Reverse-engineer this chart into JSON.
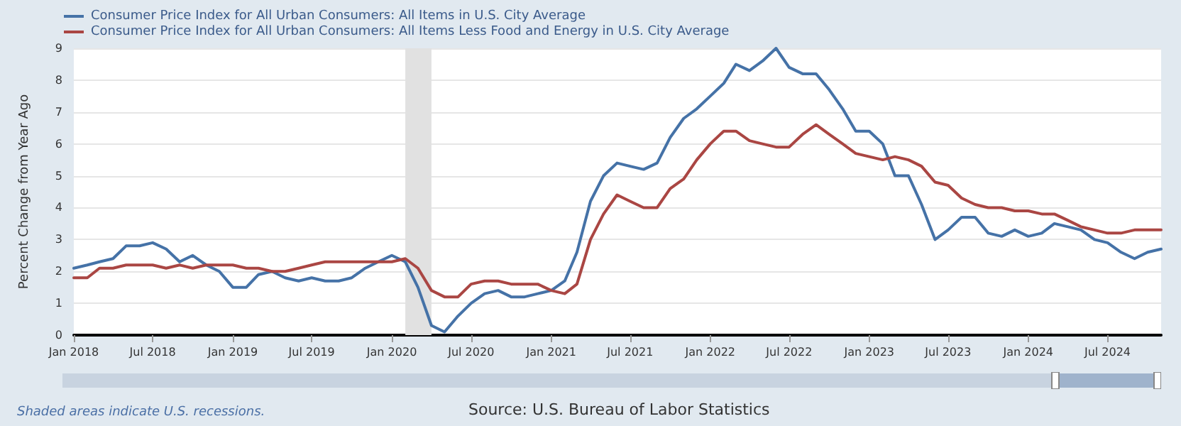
{
  "chart_data": {
    "type": "line",
    "ylabel": "Percent Change from Year Ago",
    "x": [
      "2018-01",
      "2018-02",
      "2018-03",
      "2018-04",
      "2018-05",
      "2018-06",
      "2018-07",
      "2018-08",
      "2018-09",
      "2018-10",
      "2018-11",
      "2018-12",
      "2019-01",
      "2019-02",
      "2019-03",
      "2019-04",
      "2019-05",
      "2019-06",
      "2019-07",
      "2019-08",
      "2019-09",
      "2019-10",
      "2019-11",
      "2019-12",
      "2020-01",
      "2020-02",
      "2020-03",
      "2020-04",
      "2020-05",
      "2020-06",
      "2020-07",
      "2020-08",
      "2020-09",
      "2020-10",
      "2020-11",
      "2020-12",
      "2021-01",
      "2021-02",
      "2021-03",
      "2021-04",
      "2021-05",
      "2021-06",
      "2021-07",
      "2021-08",
      "2021-09",
      "2021-10",
      "2021-11",
      "2021-12",
      "2022-01",
      "2022-02",
      "2022-03",
      "2022-04",
      "2022-05",
      "2022-06",
      "2022-07",
      "2022-08",
      "2022-09",
      "2022-10",
      "2022-11",
      "2022-12",
      "2023-01",
      "2023-02",
      "2023-03",
      "2023-04",
      "2023-05",
      "2023-06",
      "2023-07",
      "2023-08",
      "2023-09",
      "2023-10",
      "2023-11",
      "2023-12",
      "2024-01",
      "2024-02",
      "2024-03",
      "2024-04",
      "2024-05",
      "2024-06",
      "2024-07",
      "2024-08",
      "2024-09",
      "2024-10",
      "2024-11"
    ],
    "series": [
      {
        "name": "Consumer Price Index for All Urban Consumers: All Items in U.S. City Average",
        "color": "#4572a7",
        "values": [
          2.1,
          2.2,
          2.3,
          2.4,
          2.8,
          2.8,
          2.9,
          2.7,
          2.3,
          2.5,
          2.2,
          2.0,
          1.5,
          1.5,
          1.9,
          2.0,
          1.8,
          1.7,
          1.8,
          1.7,
          1.7,
          1.8,
          2.1,
          2.3,
          2.5,
          2.3,
          1.5,
          0.3,
          0.1,
          0.6,
          1.0,
          1.3,
          1.4,
          1.2,
          1.2,
          1.3,
          1.4,
          1.7,
          2.6,
          4.2,
          5.0,
          5.4,
          5.3,
          5.2,
          5.4,
          6.2,
          6.8,
          7.1,
          7.5,
          7.9,
          8.5,
          8.3,
          8.6,
          9.0,
          8.4,
          8.2,
          8.2,
          7.7,
          7.1,
          6.4,
          6.4,
          6.0,
          5.0,
          5.0,
          4.1,
          3.0,
          3.3,
          3.7,
          3.7,
          3.2,
          3.1,
          3.3,
          3.1,
          3.2,
          3.5,
          3.4,
          3.3,
          3.0,
          2.9,
          2.6,
          2.4,
          2.6,
          2.7
        ]
      },
      {
        "name": "Consumer Price Index for All Urban Consumers: All Items Less Food and Energy in U.S. City Average",
        "color": "#aa4643",
        "values": [
          1.8,
          1.8,
          2.1,
          2.1,
          2.2,
          2.2,
          2.2,
          2.1,
          2.2,
          2.1,
          2.2,
          2.2,
          2.2,
          2.1,
          2.1,
          2.0,
          2.0,
          2.1,
          2.2,
          2.3,
          2.3,
          2.3,
          2.3,
          2.3,
          2.3,
          2.4,
          2.1,
          1.4,
          1.2,
          1.2,
          1.6,
          1.7,
          1.7,
          1.6,
          1.6,
          1.6,
          1.4,
          1.3,
          1.6,
          3.0,
          3.8,
          4.4,
          4.2,
          4.0,
          4.0,
          4.6,
          4.9,
          5.5,
          6.0,
          6.4,
          6.4,
          6.1,
          6.0,
          5.9,
          5.9,
          6.3,
          6.6,
          6.3,
          6.0,
          5.7,
          5.6,
          5.5,
          5.6,
          5.5,
          5.3,
          4.8,
          4.7,
          4.3,
          4.1,
          4.0,
          4.0,
          3.9,
          3.9,
          3.8,
          3.8,
          3.6,
          3.4,
          3.3,
          3.2,
          3.2,
          3.3,
          3.3,
          3.3
        ]
      }
    ],
    "xlim": [
      "2018-01",
      "2024-11"
    ],
    "xticks": [
      {
        "value": "2018-01",
        "label": "Jan 2018"
      },
      {
        "value": "2018-07",
        "label": "Jul 2018"
      },
      {
        "value": "2019-01",
        "label": "Jan 2019"
      },
      {
        "value": "2019-07",
        "label": "Jul 2019"
      },
      {
        "value": "2020-01",
        "label": "Jan 2020"
      },
      {
        "value": "2020-07",
        "label": "Jul 2020"
      },
      {
        "value": "2021-01",
        "label": "Jan 2021"
      },
      {
        "value": "2021-07",
        "label": "Jul 2021"
      },
      {
        "value": "2022-01",
        "label": "Jan 2022"
      },
      {
        "value": "2022-07",
        "label": "Jul 2022"
      },
      {
        "value": "2023-01",
        "label": "Jan 2023"
      },
      {
        "value": "2023-07",
        "label": "Jul 2023"
      },
      {
        "value": "2024-01",
        "label": "Jan 2024"
      },
      {
        "value": "2024-07",
        "label": "Jul 2024"
      }
    ],
    "ylim": [
      0,
      9
    ],
    "yticks": [
      0,
      1,
      2,
      3,
      4,
      5,
      6,
      7,
      8,
      9
    ],
    "bands": [
      {
        "axis": "x",
        "from": "2020-02",
        "to": "2020-04",
        "color": "#e1e1e1"
      }
    ],
    "annotations": [
      "Shaded areas indicate U.S. recessions.",
      "Source: U.S. Bureau of Labor Statistics"
    ],
    "grid": "y",
    "legend": "top left",
    "marker": "none",
    "line_style": "solid"
  }
}
